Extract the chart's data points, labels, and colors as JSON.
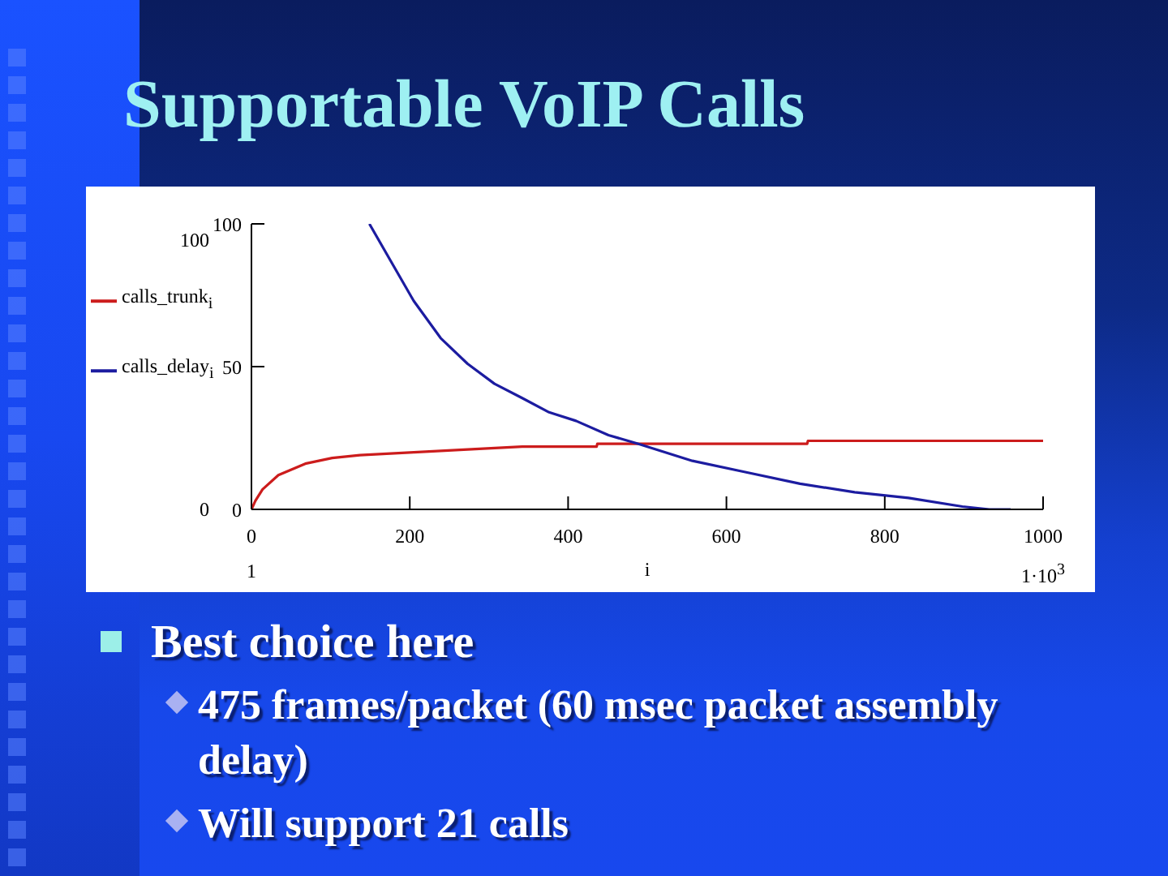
{
  "chart_data": {
    "type": "line",
    "title": "Supportable VoIP Calls",
    "xlabel": "i",
    "series": [
      {
        "name": "calls_trunk$_{i}$",
        "color": "#cc1c1c",
        "x": [
          0,
          5,
          14,
          34,
          68,
          102,
          137,
          205,
          273,
          342,
          436,
          437,
          702,
          703,
          1000
        ],
        "values": [
          0,
          3,
          7,
          12,
          16,
          18,
          19,
          20,
          21,
          22,
          22,
          23,
          23,
          24,
          24
        ]
      },
      {
        "name": "calls_delay$_{i}$",
        "color": "#1c1ca0",
        "x": [
          149,
          178,
          205,
          239,
          273,
          307,
          342,
          376,
          410,
          451,
          488,
          557,
          625,
          693,
          762,
          830,
          898,
          932,
          959
        ],
        "values": [
          100,
          86,
          73,
          60,
          51,
          44,
          39,
          34,
          31,
          26,
          23,
          17,
          13,
          9,
          6,
          4,
          1,
          0,
          0
        ]
      }
    ],
    "xlim": [
      0,
      1000
    ],
    "xticks": [
      0,
      200,
      400,
      600,
      800,
      1000
    ],
    "ylim": [
      0,
      100
    ],
    "yticks": [
      0,
      50,
      100
    ],
    "legend": "left",
    "marker": "none",
    "line_style": "solid",
    "annotations": [
      "100",
      "0",
      "1",
      "1·10$^{3}$",
      "Best choice here",
      "475 frames/packet (60 msec packet assembly delay)",
      "Will support 21 calls"
    ]
  }
}
